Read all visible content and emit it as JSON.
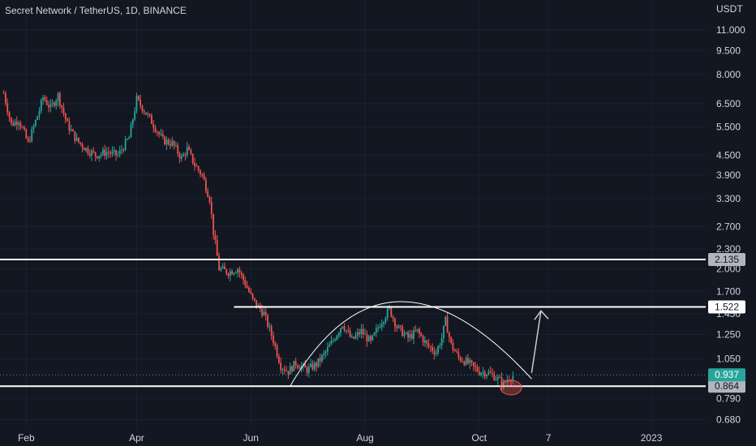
{
  "header": {
    "title": "Secret Network / TetherUS, 1D, BINANCE"
  },
  "colors": {
    "background": "#131722",
    "up": "#26a69a",
    "down": "#ef5350",
    "lines": "#ffffff"
  },
  "chart_data": {
    "type": "candlestick",
    "currency_label": "USDT",
    "y_scale": "log",
    "ylim": [
      0.64,
      12.0
    ],
    "y_ticks": [
      11.0,
      9.5,
      8.0,
      6.5,
      5.5,
      4.5,
      3.9,
      3.3,
      2.7,
      2.3,
      2.0,
      1.7,
      1.45,
      1.25,
      1.05,
      0.79,
      0.68
    ],
    "y_tick_labels": [
      "11.000",
      "9.500",
      "8.000",
      "6.500",
      "5.500",
      "4.500",
      "3.900",
      "3.300",
      "2.700",
      "2.300",
      "2.000",
      "1.700",
      "1.450",
      "1.250",
      "1.050",
      "0.790",
      "0.680"
    ],
    "x_labels": [
      {
        "label": "Feb",
        "date": "2022-02-01"
      },
      {
        "label": "Apr",
        "date": "2022-04-01"
      },
      {
        "label": "Jun",
        "date": "2022-06-01"
      },
      {
        "label": "Aug",
        "date": "2022-08-01"
      },
      {
        "label": "Oct",
        "date": "2022-10-01"
      },
      {
        "label": "7",
        "date": "2022-11-07"
      },
      {
        "label": "2023",
        "date": "2023-01-01"
      }
    ],
    "date_range": [
      "2022-01-18",
      "2023-01-30"
    ],
    "path": [
      [
        "2022-01-20",
        7.0
      ],
      [
        "2022-01-24",
        5.6
      ],
      [
        "2022-01-28",
        5.8
      ],
      [
        "2022-02-02",
        4.9
      ],
      [
        "2022-02-08",
        6.2
      ],
      [
        "2022-02-10",
        6.8
      ],
      [
        "2022-02-14",
        6.3
      ],
      [
        "2022-02-18",
        6.9
      ],
      [
        "2022-02-23",
        5.6
      ],
      [
        "2022-02-28",
        5.0
      ],
      [
        "2022-03-05",
        4.7
      ],
      [
        "2022-03-10",
        4.5
      ],
      [
        "2022-03-16",
        4.6
      ],
      [
        "2022-03-22",
        4.5
      ],
      [
        "2022-03-28",
        5.1
      ],
      [
        "2022-04-01",
        6.7
      ],
      [
        "2022-04-05",
        6.2
      ],
      [
        "2022-04-10",
        5.6
      ],
      [
        "2022-04-15",
        5.0
      ],
      [
        "2022-04-20",
        4.9
      ],
      [
        "2022-04-25",
        4.4
      ],
      [
        "2022-04-28",
        4.7
      ],
      [
        "2022-05-02",
        4.2
      ],
      [
        "2022-05-06",
        3.9
      ],
      [
        "2022-05-10",
        3.3
      ],
      [
        "2022-05-12",
        2.6
      ],
      [
        "2022-05-15",
        2.0
      ],
      [
        "2022-05-20",
        1.95
      ],
      [
        "2022-05-25",
        2.0
      ],
      [
        "2022-05-28",
        1.85
      ],
      [
        "2022-06-02",
        1.6
      ],
      [
        "2022-06-08",
        1.45
      ],
      [
        "2022-06-13",
        1.2
      ],
      [
        "2022-06-17",
        1.0
      ],
      [
        "2022-06-21",
        0.96
      ],
      [
        "2022-06-25",
        1.02
      ],
      [
        "2022-07-01",
        0.97
      ],
      [
        "2022-07-06",
        1.01
      ],
      [
        "2022-07-10",
        1.08
      ],
      [
        "2022-07-15",
        1.2
      ],
      [
        "2022-07-20",
        1.35
      ],
      [
        "2022-07-25",
        1.2
      ],
      [
        "2022-07-30",
        1.28
      ],
      [
        "2022-08-04",
        1.18
      ],
      [
        "2022-08-09",
        1.35
      ],
      [
        "2022-08-14",
        1.5
      ],
      [
        "2022-08-18",
        1.32
      ],
      [
        "2022-08-24",
        1.22
      ],
      [
        "2022-08-29",
        1.28
      ],
      [
        "2022-09-03",
        1.16
      ],
      [
        "2022-09-08",
        1.1
      ],
      [
        "2022-09-11",
        1.22
      ],
      [
        "2022-09-13",
        1.38
      ],
      [
        "2022-09-16",
        1.16
      ],
      [
        "2022-09-20",
        1.06
      ],
      [
        "2022-09-25",
        1.02
      ],
      [
        "2022-10-01",
        0.96
      ],
      [
        "2022-10-06",
        0.95
      ],
      [
        "2022-10-10",
        0.92
      ],
      [
        "2022-10-14",
        0.88
      ],
      [
        "2022-10-17",
        0.92
      ],
      [
        "2022-10-20",
        0.937
      ]
    ],
    "levels": [
      {
        "name": "resistance-upper",
        "value": 2.135,
        "label": "2.135",
        "from": "2022-01-18"
      },
      {
        "name": "resistance-neckline",
        "value": 1.522,
        "label": "1.522",
        "from": "2022-05-23"
      },
      {
        "name": "support",
        "value": 0.864,
        "label": "0.864",
        "from": "2022-01-18"
      }
    ],
    "current_price": {
      "value": 0.937,
      "label": "0.937"
    },
    "annotations": {
      "arc": {
        "from": [
          "2022-06-22",
          0.864
        ],
        "peak": [
          "2022-08-19",
          1.58
        ],
        "to": [
          "2022-10-29",
          0.91
        ]
      },
      "arrow": {
        "from": [
          "2022-10-29",
          0.95
        ],
        "to": [
          "2022-11-03",
          1.48
        ]
      },
      "circle": {
        "center": [
          "2022-10-18",
          0.855
        ]
      }
    }
  }
}
